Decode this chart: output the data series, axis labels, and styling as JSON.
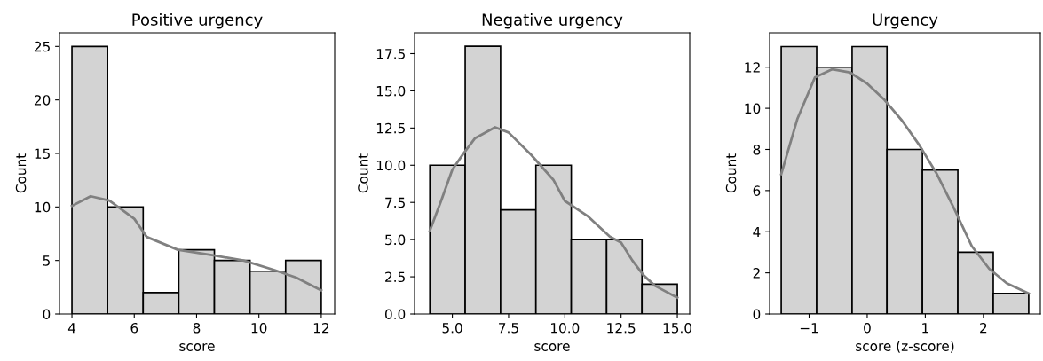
{
  "chart_data": [
    {
      "type": "histogram",
      "title": "Positive urgency",
      "xlabel": "score",
      "ylabel": "Count",
      "xlim": [
        3.6,
        12.43
      ],
      "ylim": [
        0,
        26.27
      ],
      "xticks": [
        4,
        6,
        8,
        10,
        12
      ],
      "yticks": [
        0,
        5,
        10,
        15,
        20,
        25
      ],
      "grid": false,
      "series": [
        {
          "color": "#d3d3d3",
          "bins": [
            4,
            5.143,
            6.286,
            7.429,
            8.571,
            9.714,
            10.857,
            12
          ],
          "values": [
            25,
            10,
            2,
            6,
            5,
            4,
            5
          ]
        },
        {
          "type": "line",
          "color": "#808080",
          "x": [
            4,
            4.6,
            5.2,
            6,
            6.4,
            7.4,
            8.5,
            9.5,
            10.5,
            11.2,
            12
          ],
          "values": [
            10.1,
            11.0,
            10.6,
            8.9,
            7.2,
            6.0,
            5.5,
            5.0,
            4.1,
            3.4,
            2.2
          ]
        }
      ]
    },
    {
      "type": "histogram",
      "title": "Negative urgency",
      "xlabel": "score",
      "ylabel": "Count",
      "xlim": [
        3.32,
        15.55
      ],
      "ylim": [
        0,
        18.9
      ],
      "xticks": [
        {
          "value": 5,
          "label": "5.0"
        },
        {
          "value": 7.5,
          "label": "7.5"
        },
        {
          "value": 10,
          "label": "10.0"
        },
        {
          "value": 12.5,
          "label": "12.5"
        },
        {
          "value": 15,
          "label": "15.0"
        }
      ],
      "yticks": [
        {
          "value": 0,
          "label": "0.0"
        },
        {
          "value": 2.5,
          "label": "2.5"
        },
        {
          "value": 5,
          "label": "5.0"
        },
        {
          "value": 7.5,
          "label": "7.5"
        },
        {
          "value": 10,
          "label": "10.0"
        },
        {
          "value": 12.5,
          "label": "12.5"
        },
        {
          "value": 15,
          "label": "15.0"
        },
        {
          "value": 17.5,
          "label": "17.5"
        }
      ],
      "grid": false,
      "series": [
        {
          "color": "#d3d3d3",
          "bins": [
            4,
            5.571,
            7.143,
            8.714,
            10.286,
            11.857,
            13.429,
            15
          ],
          "values": [
            10,
            18,
            7,
            10,
            5,
            5,
            2
          ]
        },
        {
          "type": "line",
          "color": "#808080",
          "x": [
            4,
            4.5,
            5,
            5.5,
            6,
            6.9,
            7.5,
            8.5,
            9.5,
            10,
            11,
            12,
            12.5,
            13,
            13.5,
            14,
            15
          ],
          "values": [
            5.6,
            7.6,
            9.7,
            10.8,
            11.8,
            12.55,
            12.2,
            10.7,
            9.0,
            7.6,
            6.6,
            5.2,
            4.8,
            3.6,
            2.6,
            1.9,
            1.1
          ]
        }
      ]
    },
    {
      "type": "histogram",
      "title": "Urgency",
      "xlabel": "score (z-score)",
      "ylabel": "Count",
      "xlim": [
        -1.68,
        2.98
      ],
      "ylim": [
        0,
        13.67
      ],
      "xticks": [
        {
          "value": -1,
          "label": "−1"
        },
        0,
        1,
        2
      ],
      "yticks": [
        0,
        2,
        4,
        6,
        8,
        10,
        12
      ],
      "grid": false,
      "series": [
        {
          "color": "#d3d3d3",
          "bins": [
            -1.48,
            -0.87,
            -0.26,
            0.34,
            0.95,
            1.56,
            2.17,
            2.78
          ],
          "values": [
            13,
            12,
            13,
            8,
            7,
            3,
            1
          ]
        },
        {
          "type": "line",
          "color": "#808080",
          "x": [
            -1.48,
            -1.2,
            -0.9,
            -0.6,
            -0.3,
            0,
            0.3,
            0.6,
            0.9,
            1.2,
            1.5,
            1.8,
            2.1,
            2.4,
            2.78
          ],
          "values": [
            6.8,
            9.5,
            11.5,
            11.9,
            11.75,
            11.2,
            10.4,
            9.4,
            8.2,
            6.8,
            5.1,
            3.3,
            2.2,
            1.5,
            1.0
          ]
        }
      ]
    }
  ]
}
